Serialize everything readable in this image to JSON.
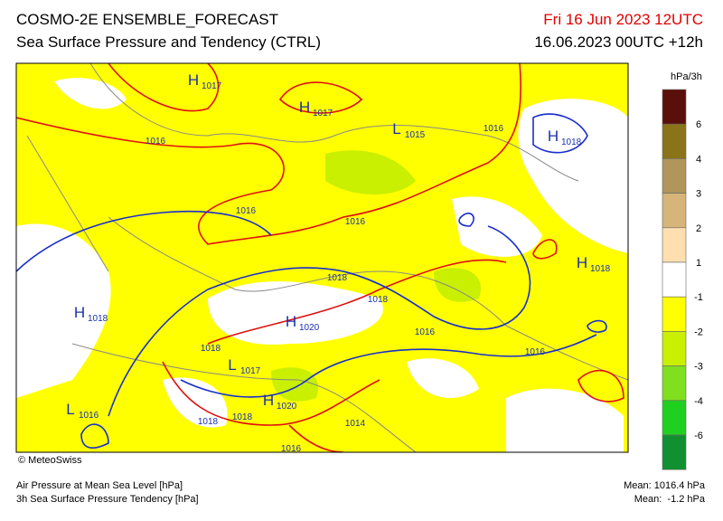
{
  "header": {
    "title": "COSMO-2E ENSEMBLE_FORECAST",
    "subtitle": "Sea Surface Pressure and Tendency (CTRL)",
    "valid_time": "Fri 16 Jun 2023 12UTC",
    "run": "16.06.2023 00UTC +12h"
  },
  "legend": {
    "unit": "hPa/3h",
    "labels": [
      "6",
      "4",
      "3",
      "2",
      "1",
      "-1",
      "-2",
      "-3",
      "-4",
      "-6"
    ],
    "colors": [
      "#5a0f0a",
      "#8a7318",
      "#b0965a",
      "#d6b47a",
      "#ffdfb0",
      "#ffffff",
      "#ffff00",
      "#c8f000",
      "#80e020",
      "#20d020",
      "#109030"
    ]
  },
  "map": {
    "isobar_labels": [
      "1016",
      "1016",
      "1016",
      "1016",
      "1018",
      "1018",
      "1018",
      "1016",
      "1016",
      "1018",
      "1018",
      "1016",
      "1014"
    ],
    "pressure_systems": [
      {
        "letter": "H",
        "value": "1017"
      },
      {
        "letter": "H",
        "value": "1017"
      },
      {
        "letter": "L",
        "value": "1015"
      },
      {
        "letter": "H",
        "value": "1018"
      },
      {
        "letter": "H",
        "value": "1018"
      },
      {
        "letter": "H",
        "value": "1018"
      },
      {
        "letter": "H",
        "value": "1020"
      },
      {
        "letter": "L",
        "value": "1017"
      },
      {
        "letter": "H",
        "value": "1020"
      },
      {
        "letter": "L",
        "value": "1016"
      }
    ]
  },
  "footer": {
    "copyright": "© MeteoSwiss",
    "line1": "Air Pressure at Mean Sea Level [hPa]",
    "line2": "3h Sea Surface Pressure Tendency [hPa]",
    "mean1": "Mean: 1016.4 hPa",
    "mean2": "Mean:  -1.2 hPa"
  }
}
